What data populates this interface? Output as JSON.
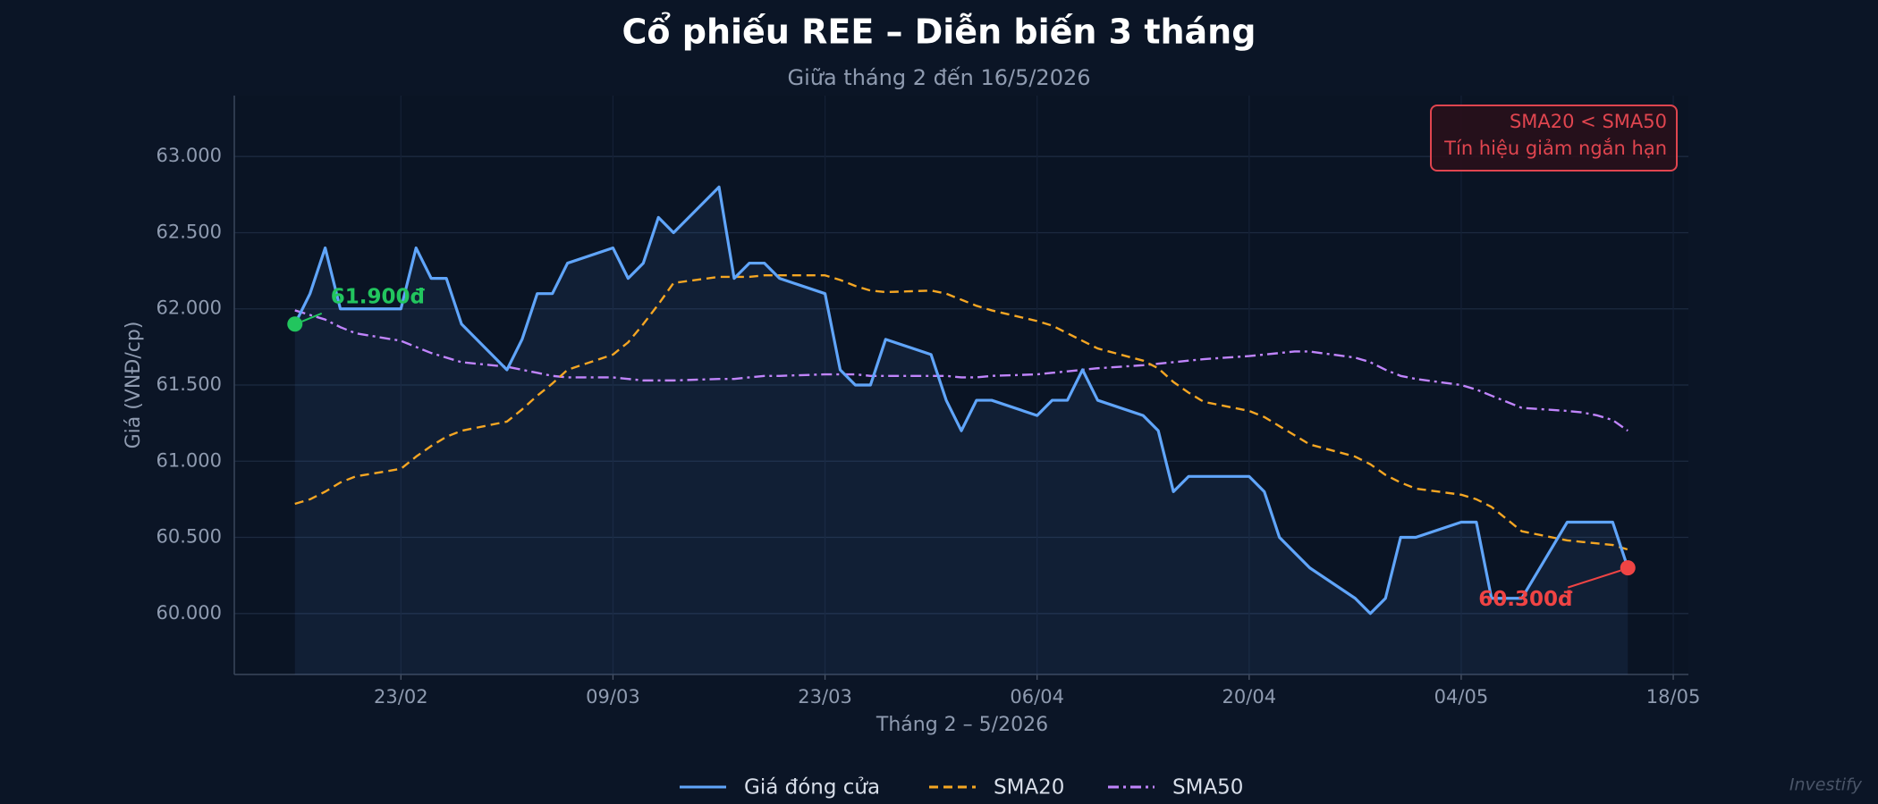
{
  "chart_data": {
    "type": "line",
    "title": "Cổ phiếu REE – Diễn biến 3 tháng",
    "subtitle": "Giữa tháng 2 đến 16/5/2026",
    "x_label": "Tháng 2 – 5/2026",
    "y_label": "Giá (VNĐ/cp)",
    "x": [
      "16/02",
      "17/02",
      "18/02",
      "19/02",
      "20/02",
      "23/02",
      "24/02",
      "25/02",
      "26/02",
      "27/02",
      "02/03",
      "03/03",
      "04/03",
      "05/03",
      "06/03",
      "09/03",
      "10/03",
      "11/03",
      "12/03",
      "13/03",
      "16/03",
      "17/03",
      "18/03",
      "19/03",
      "20/03",
      "23/03",
      "24/03",
      "25/03",
      "26/03",
      "27/03",
      "30/03",
      "31/03",
      "01/04",
      "02/04",
      "03/04",
      "06/04",
      "07/04",
      "08/04",
      "09/04",
      "10/04",
      "13/04",
      "14/04",
      "15/04",
      "16/04",
      "17/04",
      "20/04",
      "21/04",
      "22/04",
      "23/04",
      "24/04",
      "27/04",
      "28/04",
      "29/04",
      "30/04",
      "01/05",
      "04/05",
      "05/05",
      "06/05",
      "07/05",
      "08/05",
      "11/05",
      "12/05",
      "13/05",
      "14/05",
      "15/05"
    ],
    "series": [
      {
        "name": "Giá đóng cửa",
        "color": "#60a5fa",
        "style": "solid",
        "values": [
          61900,
          62100,
          62400,
          62000,
          62000,
          62000,
          62400,
          62200,
          62200,
          61900,
          61600,
          61800,
          62100,
          62100,
          62300,
          62400,
          62200,
          62300,
          62600,
          62500,
          62800,
          62200,
          62300,
          62300,
          62200,
          62100,
          61600,
          61500,
          61500,
          61800,
          61700,
          61400,
          61200,
          61400,
          61400,
          61300,
          61400,
          61400,
          61600,
          61400,
          61300,
          61200,
          60800,
          60900,
          60900,
          60900,
          60800,
          60500,
          60400,
          60300,
          60100,
          60000,
          60100,
          60500,
          60500,
          60600,
          60600,
          60100,
          60100,
          60100,
          60600,
          60600,
          60600,
          60600,
          60300
        ]
      },
      {
        "name": "SMA20",
        "color": "#f5a623",
        "style": "dashed",
        "values": [
          60720,
          60750,
          60800,
          60860,
          60900,
          60950,
          61030,
          61100,
          61160,
          61200,
          61260,
          61340,
          61430,
          61510,
          61600,
          61700,
          61780,
          61900,
          62030,
          62170,
          62210,
          62210,
          62210,
          62220,
          62220,
          62220,
          62190,
          62150,
          62120,
          62110,
          62120,
          62100,
          62060,
          62020,
          61990,
          61920,
          61890,
          61840,
          61790,
          61740,
          61660,
          61610,
          61520,
          61450,
          61390,
          61330,
          61290,
          61230,
          61170,
          61110,
          61030,
          60980,
          60910,
          60860,
          60820,
          60780,
          60750,
          60700,
          60620,
          60540,
          60480,
          60470,
          60460,
          60450,
          60420
        ]
      },
      {
        "name": "SMA50",
        "color": "#c084fc",
        "style": "dashdot",
        "values": [
          61990,
          61960,
          61930,
          61880,
          61840,
          61790,
          61750,
          61710,
          61680,
          61650,
          61620,
          61600,
          61580,
          61560,
          61550,
          61550,
          61540,
          61530,
          61530,
          61530,
          61540,
          61540,
          61550,
          61560,
          61560,
          61570,
          61570,
          61570,
          61560,
          61560,
          61560,
          61560,
          61550,
          61550,
          61560,
          61570,
          61580,
          61590,
          61600,
          61610,
          61630,
          61640,
          61650,
          61660,
          61670,
          61690,
          61700,
          61710,
          61720,
          61720,
          61680,
          61650,
          61600,
          61560,
          61540,
          61500,
          61470,
          61430,
          61390,
          61350,
          61330,
          61320,
          61300,
          61270,
          61200
        ]
      }
    ],
    "xlim": [
      "12/02",
      "19/05"
    ],
    "xticks": [
      "23/02",
      "09/03",
      "23/03",
      "06/04",
      "20/04",
      "04/05",
      "18/05"
    ],
    "ylim": [
      59600,
      63400
    ],
    "yticks": [
      {
        "value": 60000,
        "label": "60.000"
      },
      {
        "value": 60500,
        "label": "60.500"
      },
      {
        "value": 61000,
        "label": "61.000"
      },
      {
        "value": 61500,
        "label": "61.500"
      },
      {
        "value": 62000,
        "label": "62.000"
      },
      {
        "value": 62500,
        "label": "62.500"
      },
      {
        "value": 63000,
        "label": "63.000"
      }
    ],
    "grid": true,
    "legend": "bottom",
    "annotations": [
      {
        "text": "61.900đ",
        "x": "16/02",
        "y": 61900,
        "color": "#22c55e"
      },
      {
        "text": "60.300đ",
        "x": "15/05",
        "y": 60300,
        "color": "#ef4444"
      }
    ],
    "signal_box": {
      "lines": [
        "SMA20 < SMA50",
        "Tín hiệu giảm ngắn hạn"
      ],
      "color": "#e0454f"
    },
    "watermark": "Investify"
  }
}
